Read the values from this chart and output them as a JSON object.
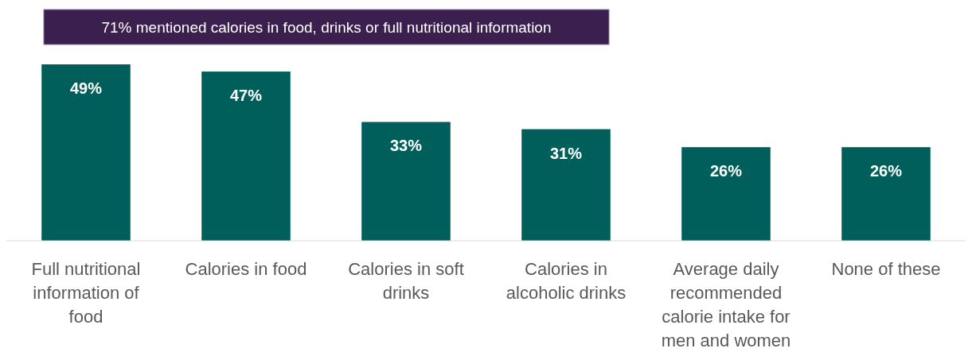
{
  "chart_data": {
    "type": "bar",
    "title": "71% mentioned calories in food, drinks or full nutritional information",
    "categories": [
      "Full nutritional information of food",
      "Calories in food",
      "Calories in soft drinks",
      "Calories in alcoholic drinks",
      "Average daily recommended calorie intake for men and women",
      "None of these"
    ],
    "values": [
      49,
      47,
      33,
      31,
      26,
      26
    ],
    "color": "#005f5a",
    "data_labels": true,
    "value_labels": [
      "49%",
      "47%",
      "33%",
      "31%",
      "26%",
      "26%"
    ]
  }
}
